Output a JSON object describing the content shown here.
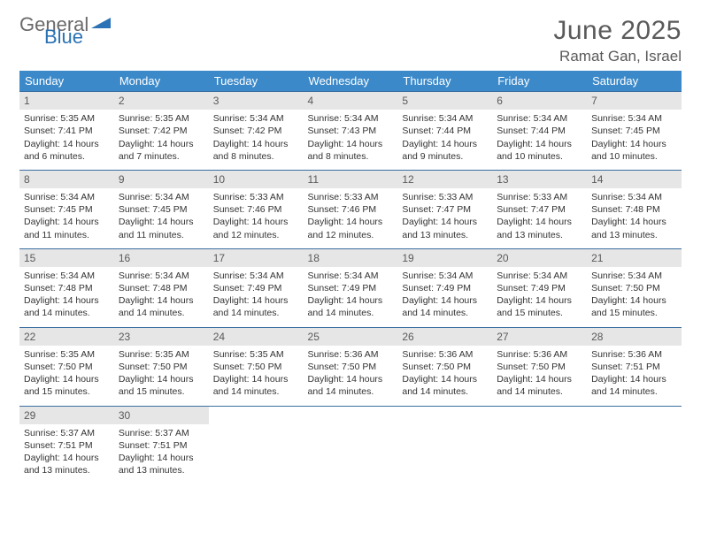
{
  "logo": {
    "word1": "General",
    "word2": "Blue"
  },
  "header": {
    "month": "June 2025",
    "location": "Ramat Gan, Israel"
  },
  "style": {
    "header_bg": "#3b89c9",
    "header_fg": "#ffffff",
    "row_border": "#3b6ea0",
    "daynum_bg": "#e6e6e6",
    "daynum_fg": "#5a5a5a",
    "text_color": "#333333",
    "title_color": "#5a5a5a",
    "logo_gray": "#6a6a6a",
    "logo_blue": "#2a72b5"
  },
  "weekdays": [
    "Sunday",
    "Monday",
    "Tuesday",
    "Wednesday",
    "Thursday",
    "Friday",
    "Saturday"
  ],
  "weeks": [
    [
      {
        "n": "1",
        "sr": "Sunrise: 5:35 AM",
        "ss": "Sunset: 7:41 PM",
        "d1": "Daylight: 14 hours",
        "d2": "and 6 minutes."
      },
      {
        "n": "2",
        "sr": "Sunrise: 5:35 AM",
        "ss": "Sunset: 7:42 PM",
        "d1": "Daylight: 14 hours",
        "d2": "and 7 minutes."
      },
      {
        "n": "3",
        "sr": "Sunrise: 5:34 AM",
        "ss": "Sunset: 7:42 PM",
        "d1": "Daylight: 14 hours",
        "d2": "and 8 minutes."
      },
      {
        "n": "4",
        "sr": "Sunrise: 5:34 AM",
        "ss": "Sunset: 7:43 PM",
        "d1": "Daylight: 14 hours",
        "d2": "and 8 minutes."
      },
      {
        "n": "5",
        "sr": "Sunrise: 5:34 AM",
        "ss": "Sunset: 7:44 PM",
        "d1": "Daylight: 14 hours",
        "d2": "and 9 minutes."
      },
      {
        "n": "6",
        "sr": "Sunrise: 5:34 AM",
        "ss": "Sunset: 7:44 PM",
        "d1": "Daylight: 14 hours",
        "d2": "and 10 minutes."
      },
      {
        "n": "7",
        "sr": "Sunrise: 5:34 AM",
        "ss": "Sunset: 7:45 PM",
        "d1": "Daylight: 14 hours",
        "d2": "and 10 minutes."
      }
    ],
    [
      {
        "n": "8",
        "sr": "Sunrise: 5:34 AM",
        "ss": "Sunset: 7:45 PM",
        "d1": "Daylight: 14 hours",
        "d2": "and 11 minutes."
      },
      {
        "n": "9",
        "sr": "Sunrise: 5:34 AM",
        "ss": "Sunset: 7:45 PM",
        "d1": "Daylight: 14 hours",
        "d2": "and 11 minutes."
      },
      {
        "n": "10",
        "sr": "Sunrise: 5:33 AM",
        "ss": "Sunset: 7:46 PM",
        "d1": "Daylight: 14 hours",
        "d2": "and 12 minutes."
      },
      {
        "n": "11",
        "sr": "Sunrise: 5:33 AM",
        "ss": "Sunset: 7:46 PM",
        "d1": "Daylight: 14 hours",
        "d2": "and 12 minutes."
      },
      {
        "n": "12",
        "sr": "Sunrise: 5:33 AM",
        "ss": "Sunset: 7:47 PM",
        "d1": "Daylight: 14 hours",
        "d2": "and 13 minutes."
      },
      {
        "n": "13",
        "sr": "Sunrise: 5:33 AM",
        "ss": "Sunset: 7:47 PM",
        "d1": "Daylight: 14 hours",
        "d2": "and 13 minutes."
      },
      {
        "n": "14",
        "sr": "Sunrise: 5:34 AM",
        "ss": "Sunset: 7:48 PM",
        "d1": "Daylight: 14 hours",
        "d2": "and 13 minutes."
      }
    ],
    [
      {
        "n": "15",
        "sr": "Sunrise: 5:34 AM",
        "ss": "Sunset: 7:48 PM",
        "d1": "Daylight: 14 hours",
        "d2": "and 14 minutes."
      },
      {
        "n": "16",
        "sr": "Sunrise: 5:34 AM",
        "ss": "Sunset: 7:48 PM",
        "d1": "Daylight: 14 hours",
        "d2": "and 14 minutes."
      },
      {
        "n": "17",
        "sr": "Sunrise: 5:34 AM",
        "ss": "Sunset: 7:49 PM",
        "d1": "Daylight: 14 hours",
        "d2": "and 14 minutes."
      },
      {
        "n": "18",
        "sr": "Sunrise: 5:34 AM",
        "ss": "Sunset: 7:49 PM",
        "d1": "Daylight: 14 hours",
        "d2": "and 14 minutes."
      },
      {
        "n": "19",
        "sr": "Sunrise: 5:34 AM",
        "ss": "Sunset: 7:49 PM",
        "d1": "Daylight: 14 hours",
        "d2": "and 14 minutes."
      },
      {
        "n": "20",
        "sr": "Sunrise: 5:34 AM",
        "ss": "Sunset: 7:49 PM",
        "d1": "Daylight: 14 hours",
        "d2": "and 15 minutes."
      },
      {
        "n": "21",
        "sr": "Sunrise: 5:34 AM",
        "ss": "Sunset: 7:50 PM",
        "d1": "Daylight: 14 hours",
        "d2": "and 15 minutes."
      }
    ],
    [
      {
        "n": "22",
        "sr": "Sunrise: 5:35 AM",
        "ss": "Sunset: 7:50 PM",
        "d1": "Daylight: 14 hours",
        "d2": "and 15 minutes."
      },
      {
        "n": "23",
        "sr": "Sunrise: 5:35 AM",
        "ss": "Sunset: 7:50 PM",
        "d1": "Daylight: 14 hours",
        "d2": "and 15 minutes."
      },
      {
        "n": "24",
        "sr": "Sunrise: 5:35 AM",
        "ss": "Sunset: 7:50 PM",
        "d1": "Daylight: 14 hours",
        "d2": "and 14 minutes."
      },
      {
        "n": "25",
        "sr": "Sunrise: 5:36 AM",
        "ss": "Sunset: 7:50 PM",
        "d1": "Daylight: 14 hours",
        "d2": "and 14 minutes."
      },
      {
        "n": "26",
        "sr": "Sunrise: 5:36 AM",
        "ss": "Sunset: 7:50 PM",
        "d1": "Daylight: 14 hours",
        "d2": "and 14 minutes."
      },
      {
        "n": "27",
        "sr": "Sunrise: 5:36 AM",
        "ss": "Sunset: 7:50 PM",
        "d1": "Daylight: 14 hours",
        "d2": "and 14 minutes."
      },
      {
        "n": "28",
        "sr": "Sunrise: 5:36 AM",
        "ss": "Sunset: 7:51 PM",
        "d1": "Daylight: 14 hours",
        "d2": "and 14 minutes."
      }
    ],
    [
      {
        "n": "29",
        "sr": "Sunrise: 5:37 AM",
        "ss": "Sunset: 7:51 PM",
        "d1": "Daylight: 14 hours",
        "d2": "and 13 minutes."
      },
      {
        "n": "30",
        "sr": "Sunrise: 5:37 AM",
        "ss": "Sunset: 7:51 PM",
        "d1": "Daylight: 14 hours",
        "d2": "and 13 minutes."
      },
      null,
      null,
      null,
      null,
      null
    ]
  ]
}
